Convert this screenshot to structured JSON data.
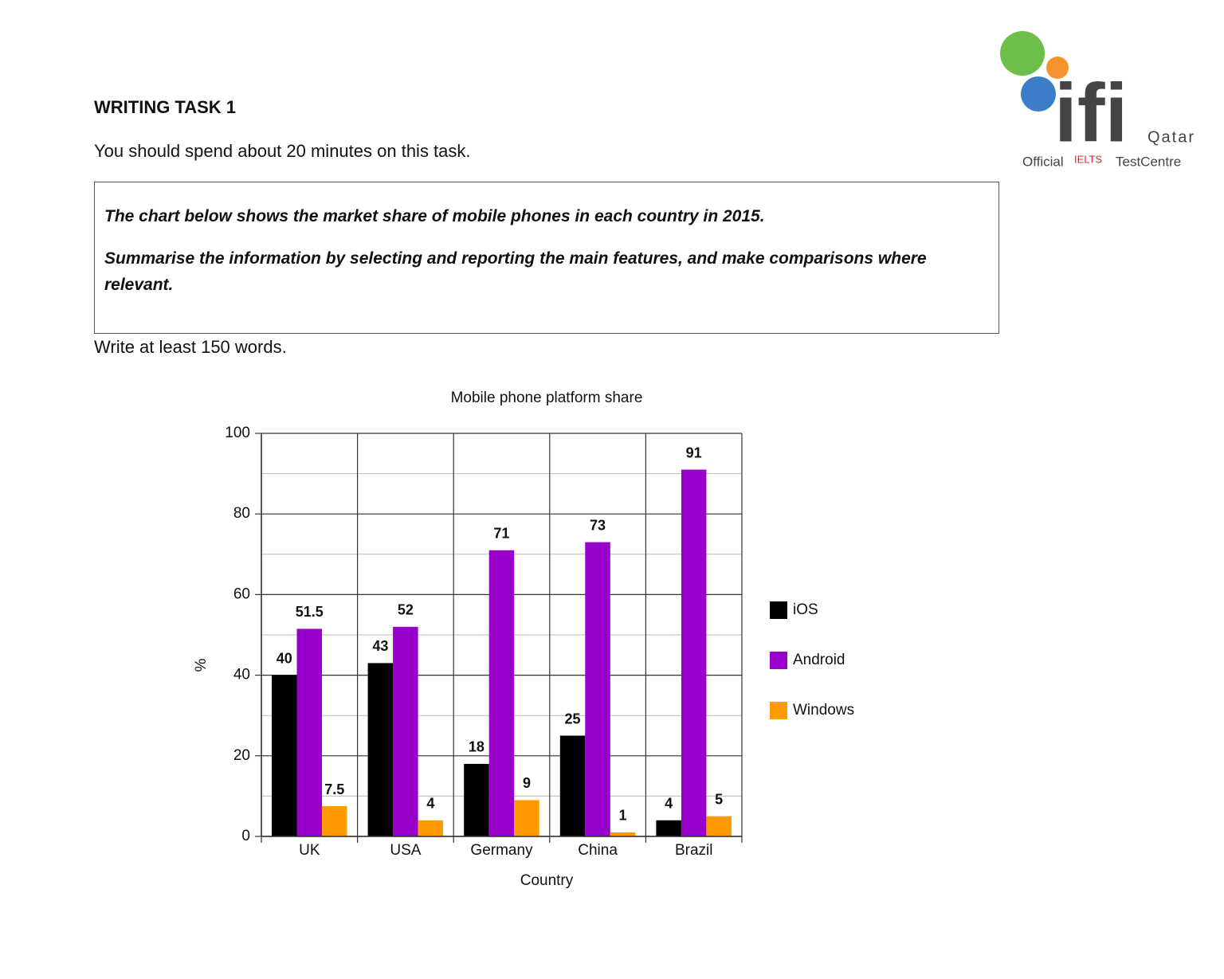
{
  "logo": {
    "brand": "ifi",
    "region": "Qatar",
    "official": "Official",
    "ielts": "IELTS",
    "centre": "TestCentre"
  },
  "heading": "WRITING TASK 1",
  "instruction": "You should spend about 20 minutes on this task.",
  "prompt": [
    "The chart below shows the market share of mobile phones in each country in 2015.",
    "Summarise the information by selecting and reporting the main features, and make comparisons where relevant."
  ],
  "word_count": "Write at least 150 words.",
  "chart_data": {
    "type": "bar",
    "title": "Mobile phone platform share",
    "x_label": "Country",
    "y_label": "%",
    "categories": [
      "UK",
      "USA",
      "Germany",
      "China",
      "Brazil"
    ],
    "series": [
      {
        "name": "iOS",
        "color": "#000000",
        "values": [
          40,
          43,
          18,
          25,
          4
        ]
      },
      {
        "name": "Android",
        "color": "#9900cc",
        "values": [
          51.5,
          52,
          71,
          73,
          91
        ]
      },
      {
        "name": "Windows",
        "color": "#ff9900",
        "values": [
          7.5,
          4,
          9,
          1,
          5
        ]
      }
    ],
    "ylim": [
      0,
      100
    ],
    "yticks": [
      0,
      20,
      40,
      60,
      80,
      100
    ],
    "yminor": [
      10,
      30,
      50,
      70,
      90
    ],
    "grid": true,
    "legend": "right"
  }
}
